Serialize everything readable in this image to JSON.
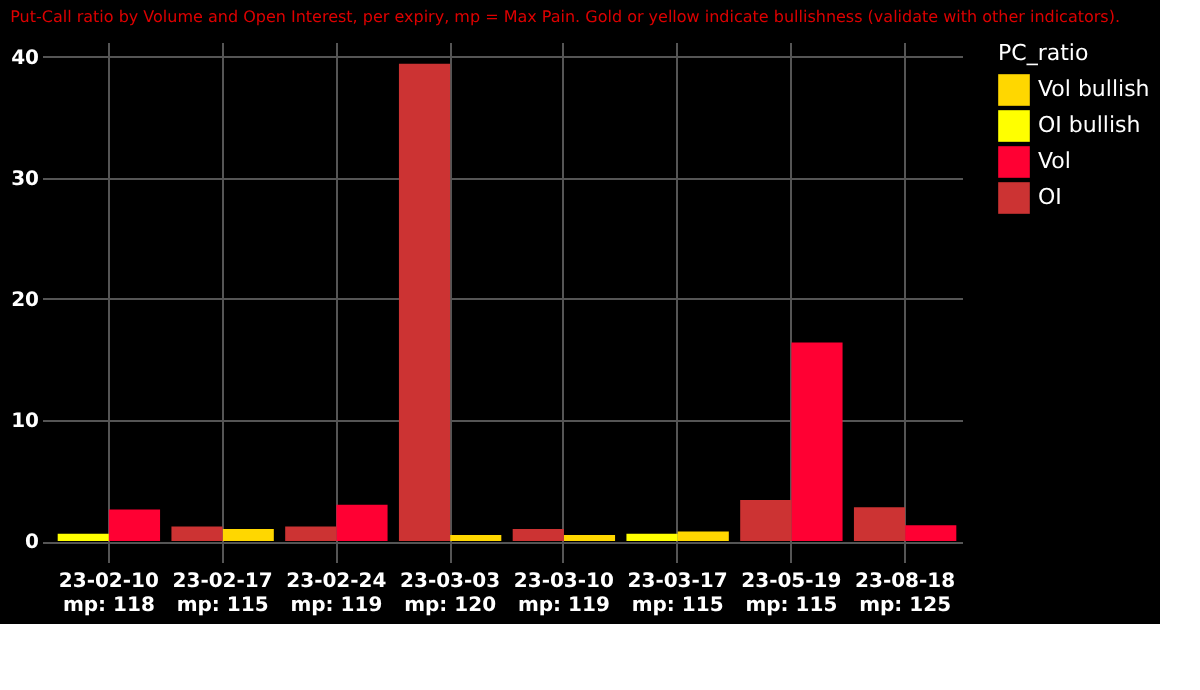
{
  "chart_data": {
    "type": "bar",
    "subtitle": "Put-Call ratio by Volume and Open Interest, per expiry, mp = Max Pain. Gold or yellow indicate bullishness (validate with other indicators).",
    "categories": [
      "23-02-10\nmp: 118",
      "23-02-17\nmp: 115",
      "23-02-24\nmp: 119",
      "23-03-03\nmp: 120",
      "23-03-10\nmp: 119",
      "23-03-17\nmp: 115",
      "23-05-19\nmp: 115",
      "23-08-18\nmp: 125"
    ],
    "legend_title": "PC_ratio",
    "series": [
      {
        "name": "Vol bullish",
        "color": "#ffd700",
        "values": [
          null,
          1.0,
          null,
          0.5,
          0.5,
          0.8,
          null,
          null
        ]
      },
      {
        "name": "OI bullish",
        "color": "#ffff00",
        "values": [
          0.6,
          null,
          null,
          null,
          null,
          0.6,
          null,
          null
        ]
      },
      {
        "name": "Vol",
        "color": "#ff0033",
        "values": [
          2.6,
          null,
          3.0,
          null,
          null,
          null,
          16.4,
          1.3
        ]
      },
      {
        "name": "OI",
        "color": "#cc3333",
        "values": [
          null,
          1.2,
          1.2,
          39.4,
          1.0,
          null,
          3.4,
          2.8
        ]
      }
    ],
    "ylim": [
      -0.9,
      41.2
    ],
    "yticks": [
      0,
      10,
      20,
      30,
      40
    ],
    "grid": true,
    "legend": "right"
  }
}
